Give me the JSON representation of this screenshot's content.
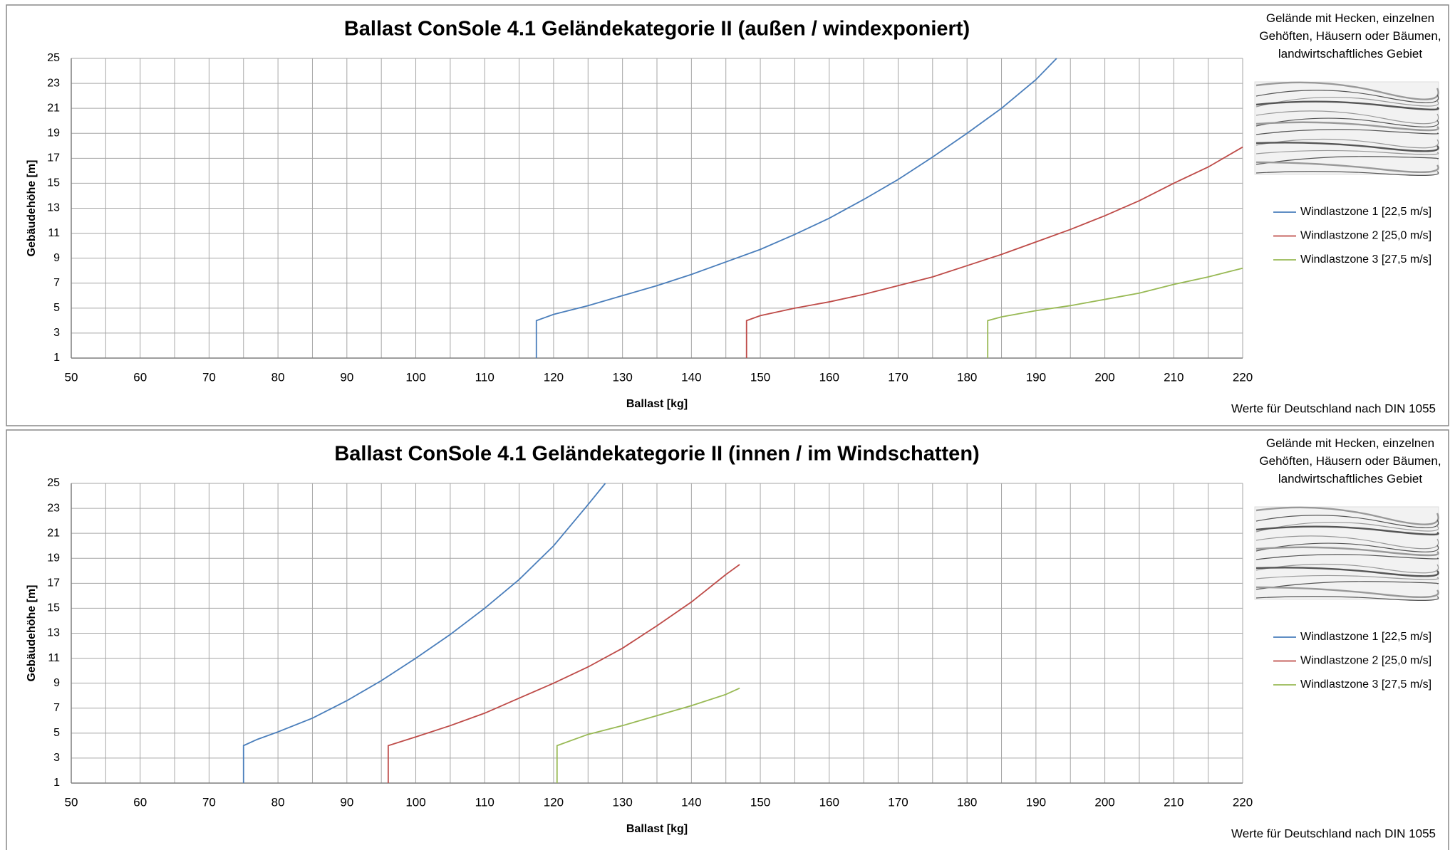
{
  "chart_data": [
    {
      "type": "line",
      "title": "Ballast ConSole 4.1 Geländekategorie II (außen / windexponiert)",
      "note": "Gelände mit Hecken, einzelnen Gehöften, Häusern oder Bäumen, landwirtschaftliches Gebiet",
      "footnote": "Werte für Deutschland nach DIN 1055",
      "x_label": "Ballast  [kg]",
      "y_label": "Gebäudehöhe [m]",
      "xlim": [
        50,
        220
      ],
      "xticks": [
        50,
        60,
        70,
        80,
        90,
        100,
        110,
        120,
        130,
        140,
        150,
        160,
        170,
        180,
        190,
        200,
        210,
        220
      ],
      "x_minor_ticks": [
        55,
        65,
        75,
        85,
        95,
        105,
        115,
        125,
        135,
        145,
        155,
        165,
        175,
        185,
        195,
        205,
        215
      ],
      "ylim": [
        1,
        25
      ],
      "yticks": [
        1,
        3,
        5,
        7,
        9,
        11,
        13,
        15,
        17,
        19,
        21,
        23,
        25
      ],
      "grid": true,
      "legend": "right",
      "series": [
        {
          "name": "Windlastzone 1 [22,5 m/s]",
          "color": "#4a7ebb",
          "x": [
            117.5,
            117.5,
            120,
            125,
            130,
            135,
            140,
            145,
            150,
            155,
            160,
            165,
            170,
            175,
            180,
            185,
            190,
            193
          ],
          "values": [
            1,
            4,
            4.5,
            5.2,
            6,
            6.8,
            7.7,
            8.7,
            9.7,
            10.9,
            12.2,
            13.7,
            15.3,
            17.1,
            19,
            21,
            23.3,
            25
          ]
        },
        {
          "name": "Windlastzone 2 [25,0 m/s]",
          "color": "#be4b48",
          "x": [
            148,
            148,
            150,
            155,
            160,
            165,
            170,
            175,
            180,
            185,
            190,
            195,
            200,
            205,
            210,
            215,
            220
          ],
          "values": [
            1,
            4,
            4.4,
            5,
            5.5,
            6.1,
            6.8,
            7.5,
            8.4,
            9.3,
            10.3,
            11.3,
            12.4,
            13.6,
            15,
            16.3,
            17.9
          ]
        },
        {
          "name": "Windlastzone 3 [27,5 m/s]",
          "color": "#98b954",
          "x": [
            183,
            183,
            185,
            190,
            195,
            200,
            205,
            210,
            215,
            220
          ],
          "values": [
            1,
            4,
            4.3,
            4.8,
            5.2,
            5.7,
            6.2,
            6.9,
            7.5,
            8.2
          ]
        }
      ]
    },
    {
      "type": "line",
      "title": "Ballast ConSole 4.1 Geländekategorie II (innen / im Windschatten)",
      "note": "Gelände mit Hecken, einzelnen Gehöften, Häusern oder Bäumen, landwirtschaftliches Gebiet",
      "footnote": "Werte für Deutschland nach DIN 1055",
      "x_label": "Ballast  [kg]",
      "y_label": "Gebäudehöhe [m]",
      "xlim": [
        50,
        220
      ],
      "xticks": [
        50,
        60,
        70,
        80,
        90,
        100,
        110,
        120,
        130,
        140,
        150,
        160,
        170,
        180,
        190,
        200,
        210,
        220
      ],
      "x_minor_ticks": [
        55,
        65,
        75,
        85,
        95,
        105,
        115,
        125,
        135,
        145,
        155,
        165,
        175,
        185,
        195,
        205,
        215
      ],
      "ylim": [
        1,
        25
      ],
      "yticks": [
        1,
        3,
        5,
        7,
        9,
        11,
        13,
        15,
        17,
        19,
        21,
        23,
        25
      ],
      "grid": true,
      "legend": "right",
      "series": [
        {
          "name": "Windlastzone 1 [22,5 m/s]",
          "color": "#4a7ebb",
          "x": [
            75,
            75,
            77,
            80,
            85,
            90,
            95,
            100,
            105,
            110,
            115,
            120,
            125,
            127.5
          ],
          "values": [
            1,
            4,
            4.5,
            5.1,
            6.2,
            7.6,
            9.2,
            11,
            12.9,
            15,
            17.3,
            20,
            23.3,
            25
          ]
        },
        {
          "name": "Windlastzone 2 [25,0 m/s]",
          "color": "#be4b48",
          "x": [
            96,
            96,
            100,
            105,
            110,
            115,
            120,
            125,
            130,
            135,
            140,
            145,
            147
          ],
          "values": [
            1,
            4,
            4.7,
            5.6,
            6.6,
            7.8,
            9,
            10.3,
            11.8,
            13.6,
            15.5,
            17.7,
            18.5
          ]
        },
        {
          "name": "Windlastzone 3 [27,5 m/s]",
          "color": "#98b954",
          "x": [
            120.5,
            120.5,
            125,
            130,
            135,
            140,
            145,
            147
          ],
          "values": [
            1,
            4,
            4.9,
            5.6,
            6.4,
            7.2,
            8.1,
            8.6
          ]
        }
      ]
    }
  ]
}
